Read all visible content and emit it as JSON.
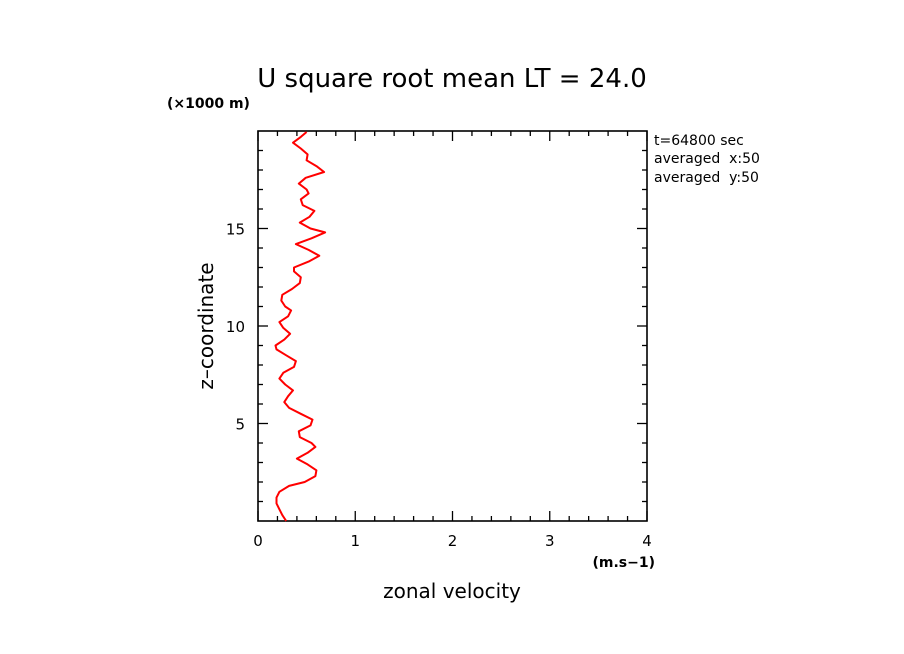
{
  "chart_data": {
    "type": "line",
    "title": "U square root mean LT = 24.0",
    "xlabel": "zonal velocity",
    "ylabel": "z–coordinate",
    "x_unit": "(m.s−1)",
    "y_unit": "(×1000 m)",
    "xlim": [
      0,
      4
    ],
    "ylim": [
      0,
      20
    ],
    "x_ticks": [
      0,
      1,
      2,
      3,
      4
    ],
    "y_ticks": [
      5,
      10,
      15
    ],
    "x_tick_labels": [
      "0",
      "1",
      "2",
      "3",
      "4"
    ],
    "y_tick_labels": [
      "5",
      "10",
      "15"
    ],
    "grid": false,
    "legend": "none",
    "annotations": [
      "t=64800 sec",
      "averaged  x:50",
      "averaged  y:50"
    ],
    "line_color": "#ff0000",
    "series": [
      {
        "x": [
          0.29,
          0.25,
          0.22,
          0.19,
          0.19,
          0.22,
          0.32,
          0.48,
          0.59,
          0.6,
          0.51,
          0.4,
          0.51,
          0.59,
          0.55,
          0.43,
          0.42,
          0.54,
          0.56,
          0.44,
          0.32,
          0.27,
          0.31,
          0.36,
          0.28,
          0.22,
          0.26,
          0.37,
          0.39,
          0.29,
          0.19,
          0.18,
          0.27,
          0.33,
          0.26,
          0.22,
          0.31,
          0.34,
          0.28,
          0.24,
          0.25,
          0.35,
          0.43,
          0.44,
          0.37,
          0.37,
          0.52,
          0.63,
          0.52,
          0.39,
          0.55,
          0.69,
          0.54,
          0.43,
          0.53,
          0.58,
          0.46,
          0.44,
          0.52,
          0.5,
          0.42,
          0.49,
          0.68,
          0.6,
          0.5,
          0.51,
          0.44,
          0.36,
          0.44,
          0.5
        ],
        "y": [
          0.0,
          0.3,
          0.6,
          0.9,
          1.2,
          1.5,
          1.8,
          2.0,
          2.3,
          2.6,
          2.9,
          3.2,
          3.5,
          3.8,
          4.0,
          4.3,
          4.6,
          4.9,
          5.2,
          5.5,
          5.8,
          6.1,
          6.4,
          6.7,
          7.0,
          7.3,
          7.6,
          7.9,
          8.2,
          8.5,
          8.8,
          9.0,
          9.3,
          9.6,
          9.9,
          10.2,
          10.5,
          10.8,
          11.0,
          11.3,
          11.6,
          11.9,
          12.2,
          12.5,
          12.8,
          13.0,
          13.3,
          13.6,
          13.9,
          14.2,
          14.5,
          14.8,
          15.0,
          15.3,
          15.6,
          15.9,
          16.2,
          16.5,
          16.8,
          17.0,
          17.3,
          17.6,
          17.9,
          18.2,
          18.5,
          18.8,
          19.1,
          19.4,
          19.7,
          19.95
        ]
      }
    ]
  }
}
